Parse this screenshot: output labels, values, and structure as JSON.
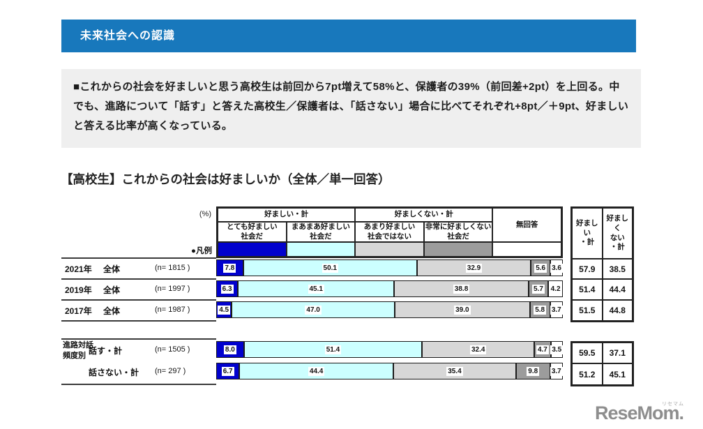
{
  "banner": {
    "title": "未来社会への認識",
    "bg": "#1878bc"
  },
  "summary": {
    "text": "■これからの社会を好ましいと思う高校生は前回から7pt増えて58%と、保護者の39%（前回差+2pt）を上回る。中でも、進路について「話す」と答えた高校生／保護者は、「話さない」場合に比べてそれぞれ+8pt／＋9pt、好ましいと答える比率が高くなっている。"
  },
  "chart": {
    "title": "【高校生】これからの社会は好ましいか（全体／単一回答）",
    "unit_label": "(%)",
    "legend_label": "●凡例",
    "group_headers": {
      "favorable": "好ましい・計",
      "unfavorable": "好ましくない・計",
      "no_answer": "無回答"
    },
    "legend": [
      {
        "label": "とても好ましい\n社会だ",
        "name": "とても好ましい社会だ",
        "color": "#0101cd"
      },
      {
        "label": "まあまあ好ましい\n社会だ",
        "name": "まあまあ好ましい社会だ",
        "color": "#ccffff"
      },
      {
        "label": "あまり好ましい\n社会ではない",
        "name": "あまり好ましい社会ではない",
        "color": "#d7d7d7"
      },
      {
        "label": "非常に好ましくない\n社会だ",
        "name": "非常に好ましくない社会だ",
        "color": "#9c9c9c"
      },
      {
        "label": "無回答",
        "name": "無回答",
        "color": "#ffffff"
      }
    ],
    "totals_headers": {
      "favorable": "好ましい\n・計",
      "unfavorable": "好ましく\nない\n・計"
    },
    "group_axis_label": "進路対話\n頻度別",
    "rows": [
      {
        "period": "2021年",
        "label": "全体",
        "n": "(n= 1815 )",
        "values": [
          7.8,
          50.1,
          32.9,
          5.6,
          3.6
        ],
        "favorable_total": "57.9",
        "unfavorable_total": "38.5"
      },
      {
        "period": "2019年",
        "label": "全体",
        "n": "(n= 1997 )",
        "values": [
          6.3,
          45.1,
          38.8,
          5.7,
          4.2
        ],
        "favorable_total": "51.4",
        "unfavorable_total": "44.4"
      },
      {
        "period": "2017年",
        "label": "全体",
        "n": "(n= 1987 )",
        "values": [
          4.5,
          47.0,
          39.0,
          5.8,
          3.7
        ],
        "favorable_total": "51.5",
        "unfavorable_total": "44.8"
      },
      {
        "period": "",
        "label": "話す・計",
        "n": "(n= 1505 )",
        "values": [
          8.0,
          51.4,
          32.4,
          4.7,
          3.5
        ],
        "favorable_total": "59.5",
        "unfavorable_total": "37.1"
      },
      {
        "period": "",
        "label": "話さない・計",
        "n": "(n= 297 )",
        "values": [
          6.7,
          44.4,
          35.4,
          9.8,
          3.7
        ],
        "favorable_total": "51.2",
        "unfavorable_total": "45.1"
      }
    ]
  },
  "chart_data": {
    "type": "bar",
    "stacked": true,
    "orientation": "horizontal",
    "title": "【高校生】これからの社会は好ましいか（全体／単一回答）",
    "unit": "%",
    "xlim": [
      0,
      100
    ],
    "categories": [
      "2021年 全体 (n=1815)",
      "2019年 全体 (n=1997)",
      "2017年 全体 (n=1987)",
      "進路対話頻度別 話す・計 (n=1505)",
      "進路対話頻度別 話さない・計 (n=297)"
    ],
    "series": [
      {
        "name": "とても好ましい社会だ",
        "color": "#0101cd",
        "values": [
          7.8,
          6.3,
          4.5,
          8.0,
          6.7
        ]
      },
      {
        "name": "まあまあ好ましい社会だ",
        "color": "#ccffff",
        "values": [
          50.1,
          45.1,
          47.0,
          51.4,
          44.4
        ]
      },
      {
        "name": "あまり好ましい社会ではない",
        "color": "#d7d7d7",
        "values": [
          32.9,
          38.8,
          39.0,
          32.4,
          35.4
        ]
      },
      {
        "name": "非常に好ましくない社会だ",
        "color": "#9c9c9c",
        "values": [
          5.6,
          5.7,
          5.8,
          4.7,
          9.8
        ]
      },
      {
        "name": "無回答",
        "color": "#ffffff",
        "values": [
          3.6,
          4.2,
          3.7,
          3.5,
          3.7
        ]
      }
    ],
    "derived_totals": {
      "favorable_total": [
        57.9,
        51.4,
        51.5,
        59.5,
        51.2
      ],
      "unfavorable_total": [
        38.5,
        44.4,
        44.8,
        37.1,
        45.1
      ]
    },
    "legend_position": "top"
  },
  "logo": {
    "text": "ReseMom.",
    "ruby": "リセマム"
  }
}
